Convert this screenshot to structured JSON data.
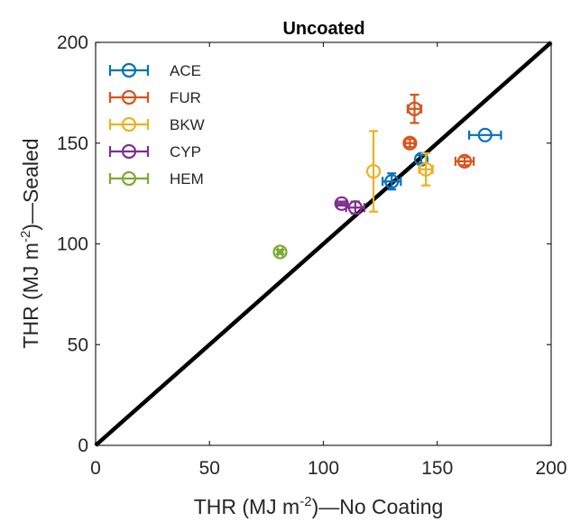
{
  "chart_data": {
    "type": "scatter",
    "title": "Uncoated",
    "xlabel": {
      "pre": "THR (MJ m",
      "sup": "-2",
      "post": ")—No Coating"
    },
    "ylabel": {
      "pre": "THR (MJ m",
      "sup": "-2",
      "post": ")—Sealed"
    },
    "xlim": [
      0,
      200
    ],
    "ylim": [
      0,
      200
    ],
    "xticks": [
      0,
      50,
      100,
      150,
      200
    ],
    "yticks": [
      0,
      50,
      100,
      150,
      200
    ],
    "grid": false,
    "legend_position": "top-left",
    "reference_line": {
      "x": [
        0,
        200
      ],
      "y": [
        0,
        200
      ],
      "color": "#000000"
    },
    "series": [
      {
        "name": "ACE",
        "color": "#0072BD",
        "points": [
          {
            "x": 171,
            "y": 154,
            "xerr": 7,
            "yerr": 0
          },
          {
            "x": 143,
            "y": 142,
            "xerr": 0,
            "yerr": 2
          },
          {
            "x": 130,
            "y": 131,
            "xerr": 4,
            "yerr": 4
          }
        ]
      },
      {
        "name": "FUR",
        "color": "#D95319",
        "points": [
          {
            "x": 140,
            "y": 167,
            "xerr": 3,
            "yerr": 7
          },
          {
            "x": 138,
            "y": 150,
            "xerr": 2,
            "yerr": 2
          },
          {
            "x": 162,
            "y": 141,
            "xerr": 4,
            "yerr": 2
          }
        ]
      },
      {
        "name": "BKW",
        "color": "#EDB120",
        "points": [
          {
            "x": 122,
            "y": 136,
            "xerr": 0,
            "yerr": 20
          },
          {
            "x": 145,
            "y": 137,
            "xerr": 3,
            "yerr": 8
          }
        ]
      },
      {
        "name": "CYP",
        "color": "#7E2F8E",
        "points": [
          {
            "x": 108,
            "y": 120,
            "xerr": 2,
            "yerr": 1
          },
          {
            "x": 114,
            "y": 118,
            "xerr": 4,
            "yerr": 3
          }
        ]
      },
      {
        "name": "HEM",
        "color": "#77AC30",
        "points": [
          {
            "x": 81,
            "y": 96,
            "xerr": 1,
            "yerr": 1
          }
        ]
      }
    ]
  }
}
